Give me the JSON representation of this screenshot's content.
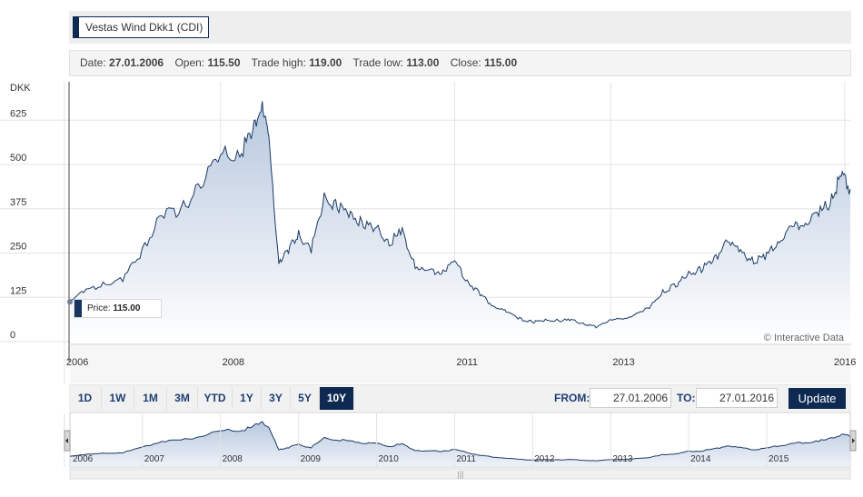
{
  "header": {
    "series_tag": "Vestas Wind Dkk1 (CDI)"
  },
  "info": {
    "date_label": "Date:",
    "date_value": "27.01.2006",
    "open_label": "Open:",
    "open_value": "115.50",
    "high_label": "Trade high:",
    "high_value": "119.00",
    "low_label": "Trade low:",
    "low_value": "113.00",
    "close_label": "Close:",
    "close_value": "115.00"
  },
  "price_label": {
    "label": "Price:",
    "value": "115.00"
  },
  "credit": "© Interactive Data",
  "controls": {
    "ranges": [
      "1D",
      "1W",
      "1M",
      "3M",
      "YTD",
      "1Y",
      "3Y",
      "5Y",
      "10Y"
    ],
    "active_range": "10Y",
    "from_label": "FROM:",
    "from_value": "27.01.2006",
    "to_label": "TO:",
    "to_value": "27.01.2016",
    "update_label": "Update"
  },
  "colors": {
    "line": "#1b3a66",
    "fill_top": "#b7c7de",
    "accent": "#0e2a52"
  },
  "chart_data": {
    "type": "area",
    "ylabel": "DKK",
    "y_ticks": [
      0,
      125,
      250,
      375,
      500,
      625
    ],
    "ylim": [
      0,
      700
    ],
    "x_ticks": [
      "2006",
      "2008",
      "2011",
      "2013",
      "2016"
    ],
    "x_tick_dates": [
      "2006-01-01",
      "2008-01-01",
      "2011-01-01",
      "2013-01-01",
      "2016-01-01"
    ],
    "xlim": [
      "2006-01-27",
      "2016-01-27"
    ],
    "grid": true,
    "navigator_ticks": [
      "2006",
      "2007",
      "2008",
      "2009",
      "2010",
      "2011",
      "2012",
      "2013",
      "2014",
      "2015"
    ],
    "series": [
      {
        "x": [
          "2006-01-27",
          "2006-04-01",
          "2006-07-01",
          "2006-10-01",
          "2007-01-01",
          "2007-04-01",
          "2007-07-01",
          "2007-10-01",
          "2008-01-01",
          "2008-04-01",
          "2008-06-01",
          "2008-07-15",
          "2008-08-15",
          "2008-10-01",
          "2008-11-15",
          "2009-01-01",
          "2009-03-01",
          "2009-05-01",
          "2009-07-01",
          "2009-09-01",
          "2009-11-01",
          "2010-01-01",
          "2010-03-01",
          "2010-05-01",
          "2010-07-01",
          "2010-09-01",
          "2010-11-01",
          "2011-01-01",
          "2011-03-01",
          "2011-05-01",
          "2011-07-01",
          "2011-09-01",
          "2011-11-01",
          "2012-01-01",
          "2012-03-01",
          "2012-05-01",
          "2012-07-01",
          "2012-09-01",
          "2012-11-01",
          "2013-01-01",
          "2013-03-01",
          "2013-05-01",
          "2013-07-01",
          "2013-09-01",
          "2013-11-01",
          "2014-01-01",
          "2014-03-01",
          "2014-05-01",
          "2014-07-01",
          "2014-09-01",
          "2014-11-01",
          "2015-01-01",
          "2015-03-01",
          "2015-05-01",
          "2015-07-01",
          "2015-09-01",
          "2015-11-01",
          "2015-12-15",
          "2016-01-27"
        ],
        "y": [
          115,
          145,
          160,
          175,
          255,
          360,
          370,
          445,
          520,
          540,
          580,
          690,
          560,
          230,
          255,
          305,
          260,
          405,
          380,
          360,
          330,
          320,
          280,
          310,
          215,
          195,
          200,
          225,
          170,
          135,
          100,
          85,
          65,
          55,
          60,
          60,
          60,
          50,
          40,
          65,
          60,
          80,
          95,
          140,
          160,
          190,
          205,
          230,
          290,
          250,
          230,
          240,
          290,
          320,
          340,
          360,
          400,
          470,
          430
        ]
      }
    ]
  }
}
